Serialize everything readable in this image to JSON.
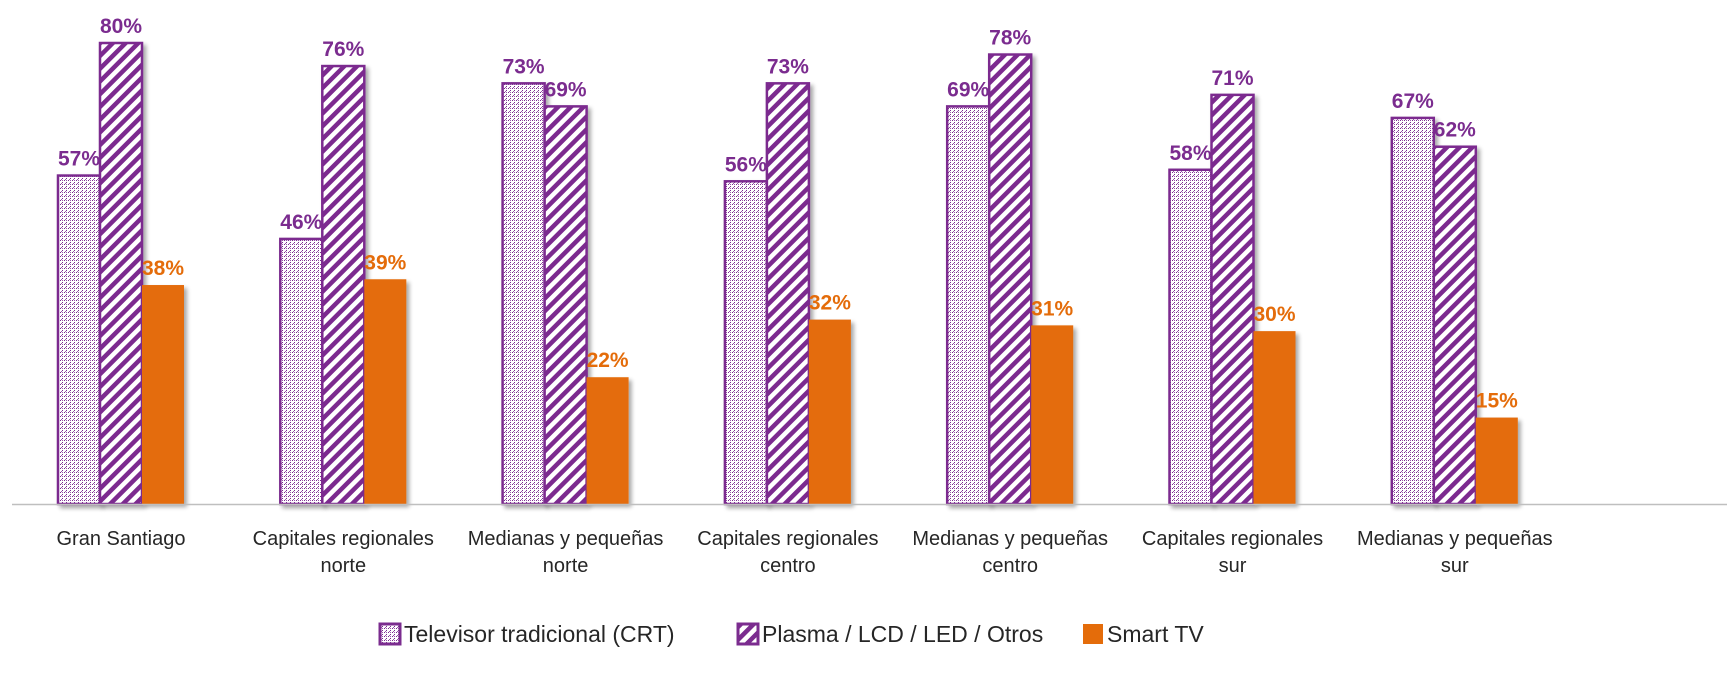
{
  "chart_data": {
    "type": "bar",
    "categories": [
      [
        "Gran Santiago"
      ],
      [
        "Capitales regionales",
        "norte"
      ],
      [
        "Medianas y pequeñas",
        "norte"
      ],
      [
        "Capitales regionales",
        "centro"
      ],
      [
        "Medianas y pequeñas",
        "centro"
      ],
      [
        "Capitales regionales",
        "sur"
      ],
      [
        "Medianas y pequeñas",
        "sur"
      ]
    ],
    "series": [
      {
        "name": "Televisor tradicional (CRT)",
        "values": [
          57,
          46,
          73,
          56,
          69,
          58,
          67
        ],
        "labels": [
          "57%",
          "46%",
          "73%",
          "56%",
          "69%",
          "58%",
          "67%"
        ],
        "pattern": "dots",
        "color": "#7B2C8F",
        "label_color": "#7B2C8F"
      },
      {
        "name": "Plasma / LCD / LED / Otros",
        "values": [
          80,
          76,
          69,
          73,
          78,
          71,
          62
        ],
        "labels": [
          "80%",
          "76%",
          "69%",
          "73%",
          "78%",
          "71%",
          "62%"
        ],
        "pattern": "diagonal-stripes",
        "color": "#7B2C8F",
        "label_color": "#7B2C8F"
      },
      {
        "name": "Smart TV",
        "values": [
          38,
          39,
          22,
          32,
          31,
          30,
          15
        ],
        "labels": [
          "38%",
          "39%",
          "22%",
          "32%",
          "31%",
          "30%",
          "15%"
        ],
        "pattern": "solid",
        "color": "#E46C0A",
        "label_color": "#E46C0A"
      }
    ],
    "value_suffix": "%",
    "ylim": [
      0,
      85
    ],
    "grid": false,
    "legend_position": "bottom",
    "axis_color": "#BFBFBF"
  }
}
